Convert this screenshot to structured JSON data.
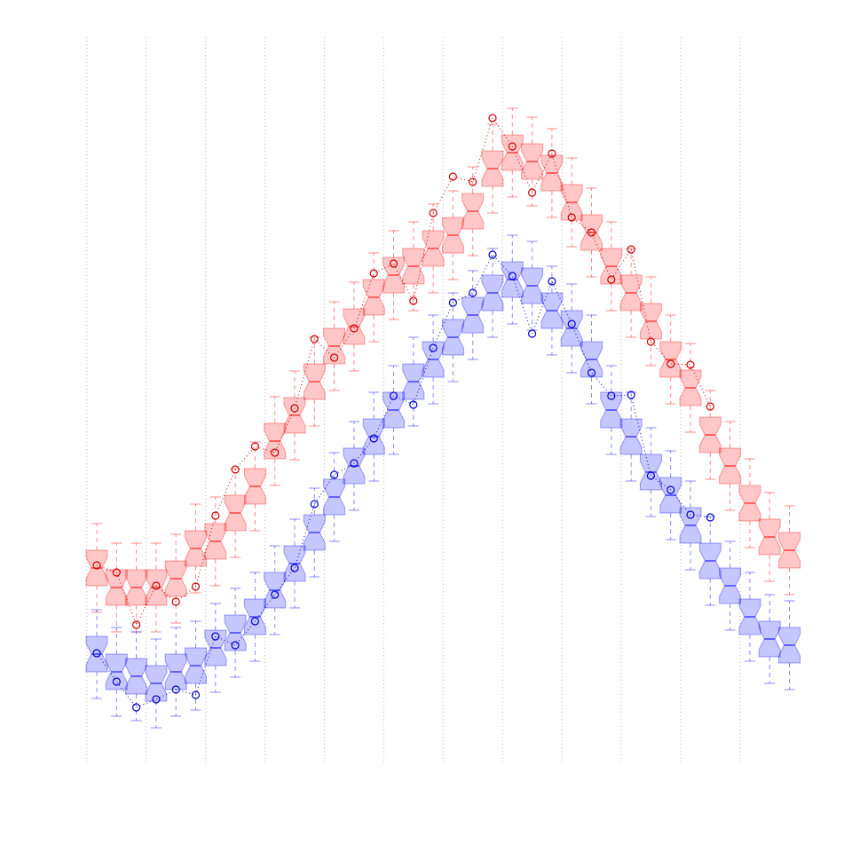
{
  "chart_data": {
    "type": "boxplot",
    "grid": true,
    "ylim": [
      0,
      96
    ],
    "categories": [
      null,
      null,
      null,
      null,
      null,
      null,
      null,
      null,
      null,
      null,
      null,
      null,
      null,
      null,
      null,
      null,
      null,
      null,
      null,
      null,
      null,
      null,
      null,
      null,
      null,
      null,
      null,
      null,
      null,
      null,
      null,
      null,
      null,
      null,
      null,
      null
    ],
    "series": [
      {
        "color": "#ff0000",
        "line_color": "#cc0000",
        "low": [
          27,
          24.8,
          24.8,
          24.8,
          25.8,
          29.2,
          30,
          33.2,
          36.2,
          41.3,
          44.2,
          48,
          52,
          54.2,
          57.5,
          60,
          61,
          63,
          64.5,
          67.2,
          72,
          73.8,
          72.8,
          71.5,
          68.2,
          64.8,
          61,
          58,
          54.8,
          50.5,
          47.3,
          42,
          38.5,
          34.3,
          30.5,
          29
        ],
        "q1": [
          30,
          27.8,
          27.8,
          27.8,
          28.8,
          32.2,
          33,
          36.2,
          39.2,
          44.3,
          47.2,
          51,
          55,
          57.2,
          60.5,
          63,
          64,
          66,
          67.5,
          70.2,
          75,
          76.8,
          75.8,
          74.5,
          71.2,
          67.8,
          64,
          61,
          57.8,
          53.5,
          50.3,
          45,
          41.5,
          37.3,
          33.5,
          32
        ],
        "median": [
          32,
          29.8,
          29.8,
          29.8,
          30.8,
          34.2,
          35,
          38.2,
          41.2,
          46.3,
          49.2,
          53,
          57,
          59.2,
          62.5,
          65,
          66,
          68,
          69.5,
          72.2,
          77,
          78.8,
          77.8,
          76.5,
          73.2,
          69.8,
          66,
          63,
          59.8,
          55.5,
          52.3,
          47,
          43.5,
          39.3,
          35.5,
          34
        ],
        "q3": [
          34,
          31.8,
          31.8,
          31.8,
          32.8,
          36.2,
          37,
          40.2,
          43.2,
          48.3,
          51.2,
          55,
          59,
          61.2,
          64.5,
          67,
          68,
          70,
          71.5,
          74.2,
          79,
          80.8,
          79.8,
          78.5,
          75.2,
          71.8,
          68,
          65,
          61.8,
          57.5,
          54.3,
          49,
          45.5,
          41.3,
          37.5,
          36
        ],
        "high": [
          37,
          34.8,
          34.8,
          34.8,
          35.8,
          39.2,
          40,
          43.2,
          46.2,
          51.3,
          54.2,
          58,
          62,
          64.2,
          67.5,
          70,
          71,
          73,
          74.5,
          77.2,
          82,
          83.8,
          82.8,
          81.5,
          78.2,
          74.8,
          71,
          68,
          64.8,
          60.5,
          57.3,
          52,
          48.5,
          44.3,
          40.5,
          39
        ],
        "observed": [
          32.3,
          31.5,
          25.6,
          30,
          28.2,
          29.9,
          37.9,
          43.1,
          45.7,
          45,
          50,
          57.8,
          55.7,
          59,
          65.2,
          66.3,
          62.1,
          72,
          76.1,
          75.5,
          82.7,
          79.5,
          74.3,
          78.7,
          71.5,
          69.8,
          64.5,
          67.9,
          57.5,
          55,
          54.9,
          50.2,
          null,
          null,
          null,
          null
        ]
      },
      {
        "color": "#0000ff",
        "line_color": "#0000cc",
        "low": [
          17.3,
          15.3,
          14.8,
          14,
          15.3,
          16,
          18,
          19.7,
          21.5,
          24.5,
          27.5,
          31,
          35,
          38.5,
          41.8,
          44.8,
          48,
          50.5,
          53,
          55.5,
          58,
          59.5,
          58.8,
          56,
          54,
          50.5,
          44.8,
          41.8,
          37.8,
          35.2,
          31.8,
          27.8,
          25,
          21.5,
          19,
          18.3
        ],
        "q1": [
          20.3,
          18.3,
          17.8,
          17,
          18.3,
          19,
          21,
          22.7,
          24.5,
          27.5,
          30.5,
          34,
          38,
          41.5,
          44.8,
          47.8,
          51,
          53.5,
          56,
          58.5,
          61,
          62.5,
          61.8,
          59,
          57,
          53.5,
          47.8,
          44.8,
          40.8,
          38.2,
          34.8,
          30.8,
          28,
          24.5,
          22,
          21.3
        ],
        "median": [
          22.3,
          20.3,
          19.8,
          19,
          20.3,
          21,
          23,
          24.7,
          26.5,
          29.5,
          32.5,
          36,
          40,
          43.5,
          46.8,
          49.8,
          53,
          55.5,
          58,
          60.5,
          63,
          64.5,
          63.8,
          61,
          59,
          55.5,
          49.8,
          46.8,
          42.8,
          40.2,
          36.8,
          32.8,
          30,
          26.5,
          24,
          23.3
        ],
        "q3": [
          24.3,
          22.3,
          21.8,
          21,
          22.3,
          23,
          25,
          26.7,
          28.5,
          31.5,
          34.5,
          38,
          42,
          45.5,
          48.8,
          51.8,
          55,
          57.5,
          60,
          62.5,
          65,
          66.5,
          65.8,
          63,
          61,
          57.5,
          51.8,
          48.8,
          44.8,
          42.2,
          38.8,
          34.8,
          32,
          28.5,
          26,
          25.3
        ],
        "high": [
          27.3,
          25.3,
          24.8,
          24,
          25.3,
          26,
          28,
          29.7,
          31.5,
          34.5,
          37.5,
          41,
          45,
          48.5,
          51.8,
          54.8,
          58,
          60.5,
          63,
          65.5,
          68,
          69.5,
          68.8,
          66,
          64,
          60.5,
          54.8,
          51.8,
          47.8,
          45.2,
          41.8,
          37.8,
          35,
          31.5,
          29,
          28.3
        ],
        "observed": [
          22.4,
          19.2,
          16.3,
          17.2,
          18.3,
          17.7,
          24.3,
          23.3,
          26,
          29,
          32,
          39.2,
          42.5,
          43.8,
          46.6,
          51.4,
          50.4,
          56.8,
          61.9,
          63,
          67.3,
          64.9,
          58.4,
          64.3,
          59.5,
          54,
          51.4,
          51.5,
          42.4,
          40.8,
          38,
          37.7,
          null,
          null,
          null,
          null
        ]
      }
    ]
  }
}
